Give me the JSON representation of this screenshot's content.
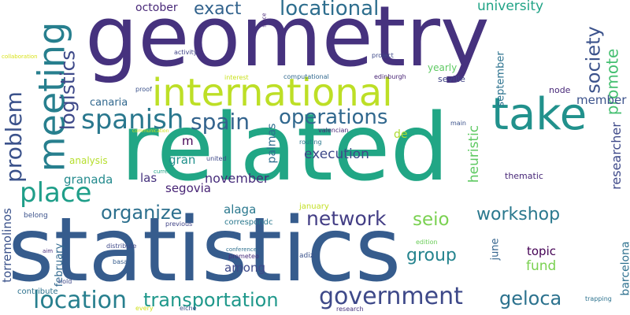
{
  "words": [
    {
      "text": "geometry",
      "color": "#46327e"
    },
    {
      "text": "related",
      "color": "#21a685"
    },
    {
      "text": "statistics",
      "color": "#365c8d"
    },
    {
      "text": "international",
      "color": "#bddf26"
    },
    {
      "text": "take",
      "color": "#21918c"
    },
    {
      "text": "meeting",
      "color": "#277f8e"
    },
    {
      "text": "spanish",
      "color": "#2a788e"
    },
    {
      "text": "spain",
      "color": "#33638d"
    },
    {
      "text": "problem",
      "color": "#3b528b"
    },
    {
      "text": "logistics",
      "color": "#3e4989"
    },
    {
      "text": "place",
      "color": "#1f9e89"
    },
    {
      "text": "locational",
      "color": "#2e6e8e"
    },
    {
      "text": "exact",
      "color": "#33638d"
    },
    {
      "text": "october",
      "color": "#482878"
    },
    {
      "text": "university",
      "color": "#20a386"
    },
    {
      "text": "society",
      "color": "#3b528b"
    },
    {
      "text": "promote",
      "color": "#44bf70"
    },
    {
      "text": "operations",
      "color": "#31688e"
    },
    {
      "text": "organize",
      "color": "#2d708e"
    },
    {
      "text": "network",
      "color": "#433e85"
    },
    {
      "text": "workshop",
      "color": "#2a788e"
    },
    {
      "text": "seio",
      "color": "#7ad151"
    },
    {
      "text": "location",
      "color": "#277f8e"
    },
    {
      "text": "transportation",
      "color": "#1f988b"
    },
    {
      "text": "government",
      "color": "#3e4989"
    },
    {
      "text": "group",
      "color": "#25848e"
    },
    {
      "text": "geloca",
      "color": "#2c728e"
    },
    {
      "text": "member",
      "color": "#3b528b"
    },
    {
      "text": "researcher",
      "color": "#3e4989"
    },
    {
      "text": "barcelona",
      "color": "#2d708e"
    },
    {
      "text": "torremolinos",
      "color": "#3b528b"
    },
    {
      "text": "granada",
      "color": "#238a8d"
    },
    {
      "text": "execution",
      "color": "#3e4989"
    },
    {
      "text": "november",
      "color": "#472d7b"
    },
    {
      "text": "alaga",
      "color": "#2a788e"
    },
    {
      "text": "segovia",
      "color": "#482475"
    },
    {
      "text": "las",
      "color": "#46337e"
    },
    {
      "text": "gran",
      "color": "#21918c"
    },
    {
      "text": "palmas",
      "color": "#2e6e8e"
    },
    {
      "text": "heuristic",
      "color": "#5ec962"
    },
    {
      "text": "september",
      "color": "#2c728e"
    },
    {
      "text": "canaria",
      "color": "#31688e"
    },
    {
      "text": "analysis",
      "color": "#b5de2b"
    },
    {
      "text": "fund",
      "color": "#7ad151"
    },
    {
      "text": "topic",
      "color": "#440154"
    },
    {
      "text": "among",
      "color": "#3e4989"
    },
    {
      "text": "june",
      "color": "#33638d"
    },
    {
      "text": "february",
      "color": "#31688e"
    },
    {
      "text": "de",
      "color": "#addc30"
    },
    {
      "text": "m",
      "color": "#440154"
    },
    {
      "text": "node",
      "color": "#482878"
    },
    {
      "text": "thematic",
      "color": "#482878"
    },
    {
      "text": "yearly",
      "color": "#5ec962"
    },
    {
      "text": "seville",
      "color": "#414487"
    },
    {
      "text": "project",
      "color": "#3e4989"
    },
    {
      "text": "edinburgh",
      "color": "#482475"
    },
    {
      "text": "interest",
      "color": "#cae11f"
    },
    {
      "text": "computational",
      "color": "#31688e"
    },
    {
      "text": "proof",
      "color": "#3b528b"
    },
    {
      "text": "activity",
      "color": "#414487"
    },
    {
      "text": "collaboration",
      "color": "#d8e219"
    },
    {
      "text": "since",
      "color": "#482878"
    },
    {
      "text": "communication",
      "color": "#d2e21b"
    },
    {
      "text": "valencian",
      "color": "#482878"
    },
    {
      "text": "routing",
      "color": "#2a788e"
    },
    {
      "text": "main",
      "color": "#3b528b"
    },
    {
      "text": "current",
      "color": "#20a386"
    },
    {
      "text": "united",
      "color": "#3e4989"
    },
    {
      "text": "january",
      "color": "#c2df23"
    },
    {
      "text": "belong",
      "color": "#3b528b"
    },
    {
      "text": "previous",
      "color": "#414487"
    },
    {
      "text": "correspondc",
      "color": "#2a788e"
    },
    {
      "text": "aim",
      "color": "#472d7b"
    },
    {
      "text": "distribute",
      "color": "#3e4989"
    },
    {
      "text": "conference",
      "color": "#2d708e"
    },
    {
      "text": "basal",
      "color": "#365c8d"
    },
    {
      "text": "prometeo",
      "color": "#472d7b"
    },
    {
      "text": "adiz",
      "color": "#3b528b"
    },
    {
      "text": "edition",
      "color": "#6ccd5a"
    },
    {
      "text": "hold",
      "color": "#3e4989"
    },
    {
      "text": "contribute",
      "color": "#2c728e"
    },
    {
      "text": "every",
      "color": "#d0e11c"
    },
    {
      "text": "elche",
      "color": "#3b528b"
    },
    {
      "text": "research",
      "color": "#46337e"
    },
    {
      "text": "trapping",
      "color": "#2c728e"
    }
  ]
}
